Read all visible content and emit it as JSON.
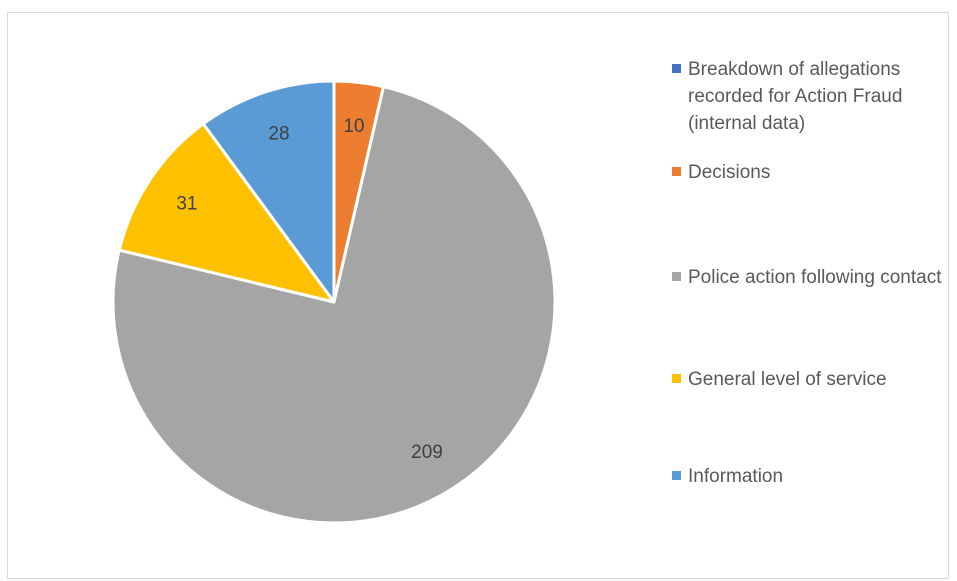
{
  "chart_data": {
    "type": "pie",
    "title": "",
    "legend_position": "right",
    "series": [
      {
        "categories": [
          "Breakdown of allegations recorded for Action Fraud (internal data)",
          "Decisions",
          "Police action following contact",
          "General level of service",
          "Information"
        ],
        "values": [
          0,
          10,
          209,
          31,
          28
        ],
        "data_labels": [
          "",
          "10",
          "209",
          "31",
          "28"
        ],
        "colors": [
          "#4472c4",
          "#ed7d31",
          "#a5a5a5",
          "#ffc000",
          "#5b9bd5"
        ]
      }
    ]
  }
}
